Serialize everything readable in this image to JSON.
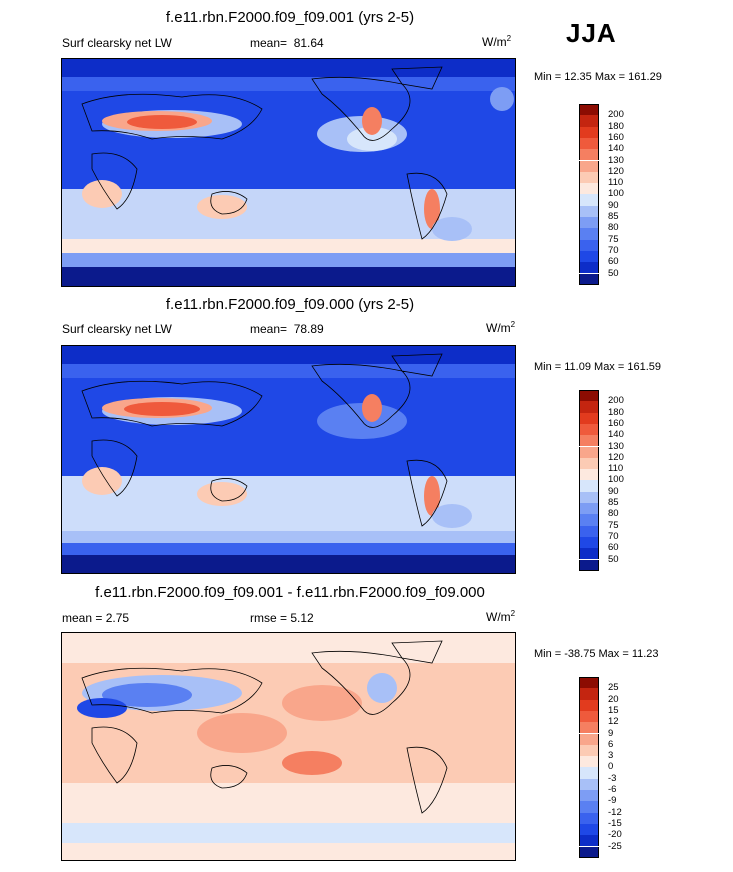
{
  "season": "JJA",
  "colors": {
    "seq": [
      "#0b1a8c",
      "#0d2dc8",
      "#1f48e6",
      "#3a62ee",
      "#5a80f2",
      "#7d9df4",
      "#a8c0f7",
      "#d7e6fb",
      "#fde9df",
      "#fccbb4",
      "#f9a68b",
      "#f57f61",
      "#ef5a3c",
      "#e23b1e",
      "#c42510",
      "#8c0c02"
    ],
    "div": [
      "#0b1a8c",
      "#0d2dc8",
      "#1f48e6",
      "#3a62ee",
      "#5a80f2",
      "#7d9df4",
      "#a8c0f7",
      "#d7e6fb",
      "#fde9df",
      "#fccbb4",
      "#f9a68b",
      "#f57f61",
      "#ef5a3c",
      "#e23b1e",
      "#c42510",
      "#8c0c02"
    ]
  },
  "panels": [
    {
      "title": "f.e11.rbn.F2000.f09_f09.001 (yrs 2-5)",
      "left_label": "Surf clearsky net LW",
      "mean_label": "mean=",
      "mean_value": "81.64",
      "units": "W/m",
      "units_exp": "2",
      "minmax": "Min =  12.35 Max = 161.29",
      "colorbar_labels": [
        "200",
        "180",
        "160",
        "140",
        "130",
        "120",
        "110",
        "100",
        "90",
        "85",
        "80",
        "75",
        "70",
        "60",
        "50"
      ]
    },
    {
      "title": "f.e11.rbn.F2000.f09_f09.000 (yrs 2-5)",
      "left_label": "Surf clearsky net LW",
      "mean_label": "mean=",
      "mean_value": "78.89",
      "units": "W/m",
      "units_exp": "2",
      "minmax": "Min =  11.09 Max = 161.59",
      "colorbar_labels": [
        "200",
        "180",
        "160",
        "140",
        "130",
        "120",
        "110",
        "100",
        "90",
        "85",
        "80",
        "75",
        "70",
        "60",
        "50"
      ]
    },
    {
      "title": "f.e11.rbn.F2000.f09_f09.001 - f.e11.rbn.F2000.f09_f09.000",
      "left_label": "mean =   2.75",
      "rmse_label": "rmse =   5.12",
      "units": "W/m",
      "units_exp": "2",
      "minmax": "Min = -38.75 Max =  11.23",
      "colorbar_labels": [
        "25",
        "20",
        "15",
        "12",
        "9",
        "6",
        "3",
        "0",
        "-3",
        "-6",
        "-9",
        "-12",
        "-15",
        "-20",
        "-25"
      ]
    }
  ],
  "chart_data": [
    {
      "type": "heatmap",
      "title": "f.e11.rbn.F2000.f09_f09.001 (yrs 2-5)",
      "variable": "Surf clearsky net LW",
      "units": "W/m2",
      "mean": 81.64,
      "min": 12.35,
      "max": 161.29,
      "levels": [
        50,
        60,
        70,
        75,
        80,
        85,
        90,
        100,
        110,
        120,
        130,
        140,
        160,
        180,
        200
      ]
    },
    {
      "type": "heatmap",
      "title": "f.e11.rbn.F2000.f09_f09.000 (yrs 2-5)",
      "variable": "Surf clearsky net LW",
      "units": "W/m2",
      "mean": 78.89,
      "min": 11.09,
      "max": 161.59,
      "levels": [
        50,
        60,
        70,
        75,
        80,
        85,
        90,
        100,
        110,
        120,
        130,
        140,
        160,
        180,
        200
      ]
    },
    {
      "type": "heatmap",
      "title": "f.e11.rbn.F2000.f09_f09.001 - f.e11.rbn.F2000.f09_f09.000",
      "variable": "difference",
      "units": "W/m2",
      "mean": 2.75,
      "rmse": 5.12,
      "min": -38.75,
      "max": 11.23,
      "levels": [
        -25,
        -20,
        -15,
        -12,
        -9,
        -6,
        -3,
        0,
        3,
        6,
        9,
        12,
        15,
        20,
        25
      ]
    }
  ]
}
